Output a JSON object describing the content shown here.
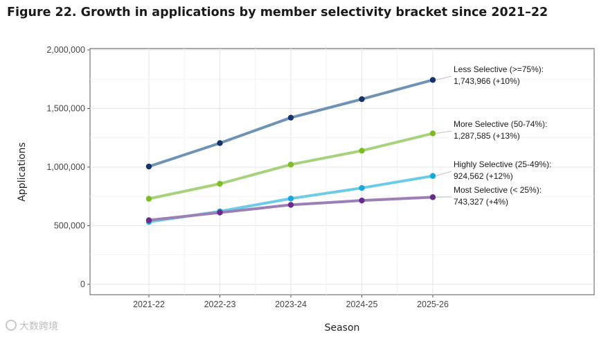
{
  "chart_data": {
    "type": "line",
    "title": "Figure 22. Growth in applications by member selectivity bracket since 2021–22",
    "xlabel": "Season",
    "ylabel": "Applications",
    "categories": [
      "2021-22",
      "2022-23",
      "2023-24",
      "2024-25",
      "2025-26"
    ],
    "ylim": [
      0,
      2000000
    ],
    "yticks": [
      0,
      500000,
      1000000,
      1500000,
      2000000
    ],
    "ytick_labels": [
      "0",
      "500,000",
      "1,000,000",
      "1,500,000",
      "2,000,000"
    ],
    "grid": true,
    "legend": "none",
    "series": [
      {
        "name": "Less Selective (>=75%):",
        "values": [
          1005000,
          1205000,
          1422000,
          1580000,
          1743966
        ],
        "line_color": "#6f93b6",
        "marker_color": "#16336b",
        "annotation": [
          "Less Selective (>=75%):",
          "1,743,966 (+10%)"
        ]
      },
      {
        "name": "More Selective (50-74%):",
        "values": [
          730000,
          858000,
          1022000,
          1140000,
          1287585
        ],
        "line_color": "#a8d17c",
        "marker_color": "#7cbd26",
        "annotation": [
          "More Selective (50-74%):",
          "1,287,585 (+13%)"
        ]
      },
      {
        "name": "Highly Selective (25-49%):",
        "values": [
          533000,
          622000,
          732000,
          822000,
          924562
        ],
        "line_color": "#6ccbe6",
        "marker_color": "#19a8d8",
        "annotation": [
          "Highly Selective (25-49%):",
          "924,562 (+12%)"
        ]
      },
      {
        "name": "Most Selective (< 25%):",
        "values": [
          547000,
          612000,
          678000,
          715000,
          743327
        ],
        "line_color": "#9b7fb6",
        "marker_color": "#6a2c8c",
        "annotation": [
          "Most Selective (< 25%):",
          "743,327 (+4%)"
        ]
      }
    ]
  },
  "watermark": {
    "text": "大数跨境",
    "icon": "camera-logo-icon"
  }
}
